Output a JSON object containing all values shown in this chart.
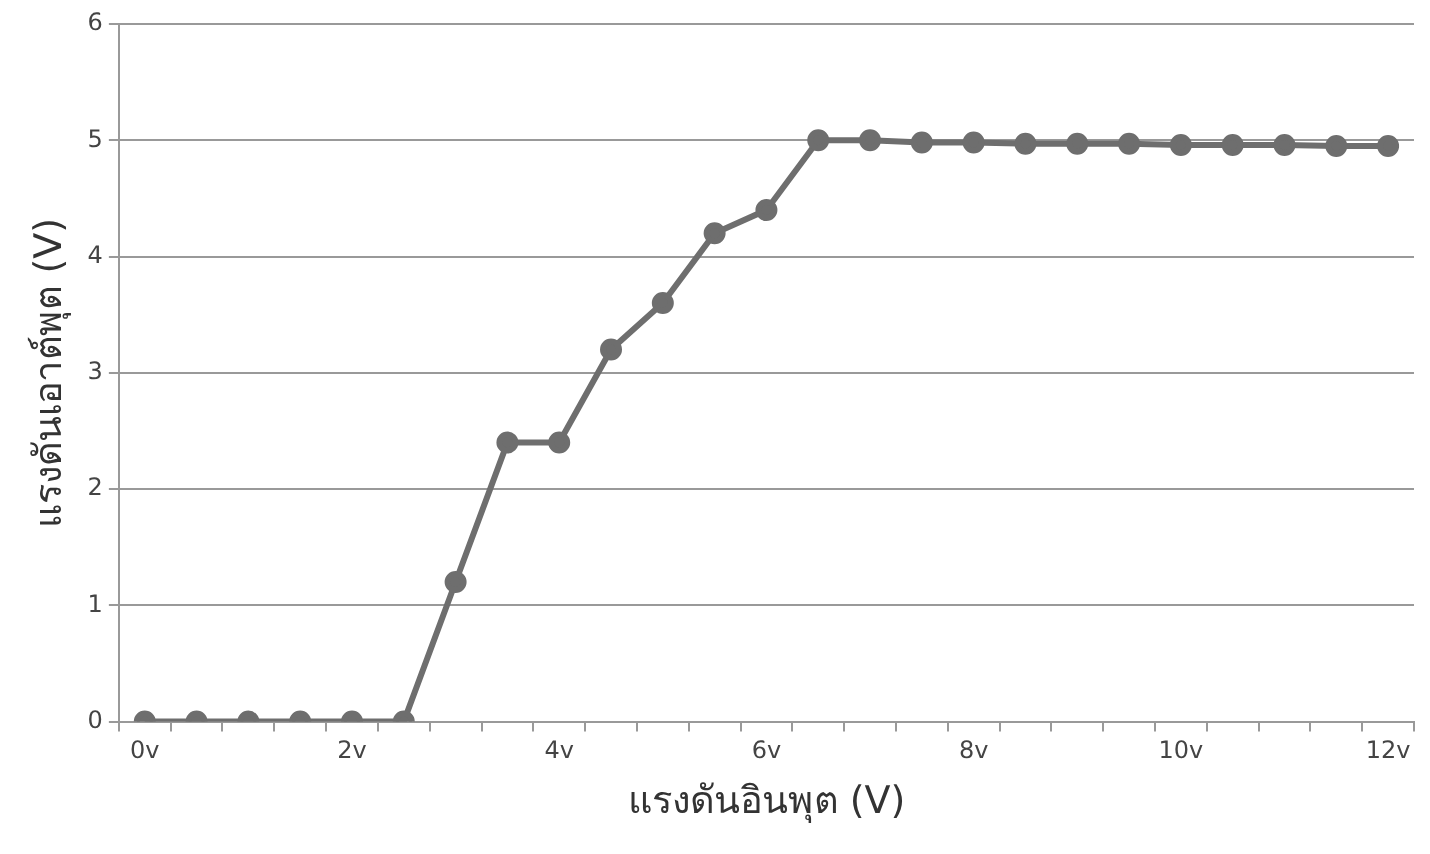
{
  "chart_data": {
    "type": "line",
    "xlabel": "แรงดันอินพุต (V)",
    "ylabel": "แรงดันเอาต์พุต (V)",
    "categories": [
      "0v",
      null,
      null,
      null,
      "2v",
      null,
      null,
      null,
      "4v",
      null,
      null,
      null,
      "6v",
      null,
      null,
      null,
      "8v",
      null,
      null,
      null,
      "10v",
      null,
      null,
      null,
      "12v"
    ],
    "series": [
      {
        "color": "#6e6e6e",
        "values": [
          0,
          0,
          0,
          0,
          0,
          0,
          1.2,
          2.4,
          2.4,
          3.2,
          3.6,
          4.2,
          4.4,
          5,
          5,
          4.98,
          4.98,
          4.97,
          4.97,
          4.97,
          4.96,
          4.96,
          4.96,
          4.95,
          4.95
        ]
      }
    ],
    "ylim": [
      0,
      6
    ],
    "yticks": [
      0,
      1,
      2,
      3,
      4,
      5,
      6
    ],
    "grid": "y",
    "legend": false,
    "marker": "circle",
    "line_style": "solid"
  }
}
